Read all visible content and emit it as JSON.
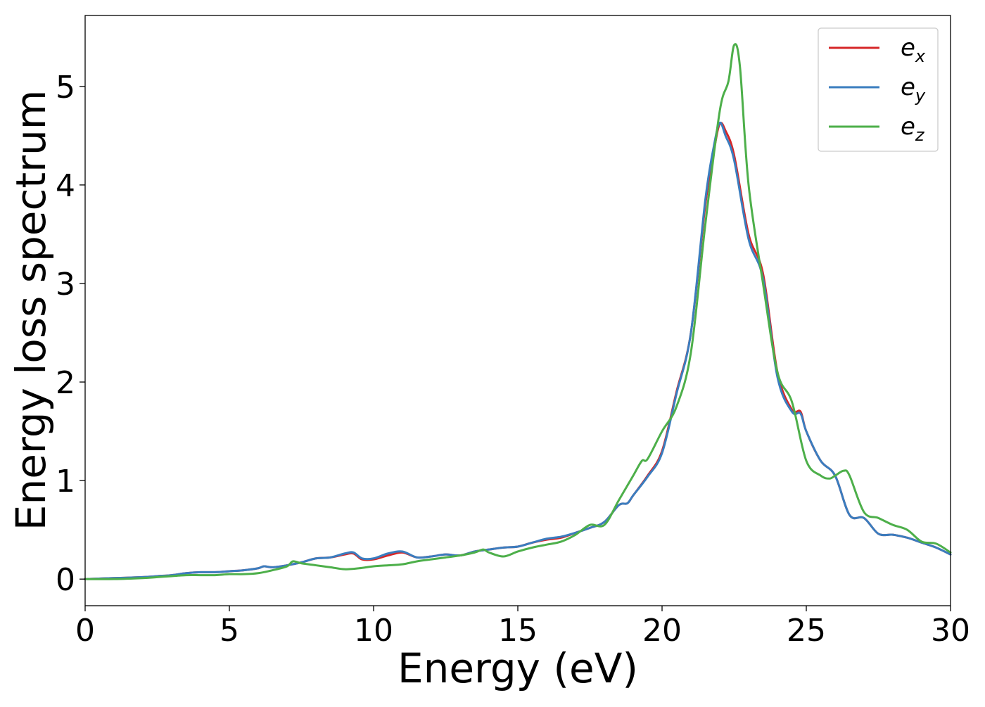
{
  "chart_data": {
    "type": "line",
    "title": "",
    "xlabel": "Energy (eV)",
    "ylabel": "Energy loss spectrum",
    "xlim": [
      0,
      30
    ],
    "ylim": [
      -0.27,
      5.72
    ],
    "xticks": [
      0,
      5,
      10,
      15,
      20,
      25,
      30
    ],
    "yticks": [
      0,
      1,
      2,
      3,
      4,
      5
    ],
    "grid": false,
    "legend_position": "top-right",
    "series": [
      {
        "name": "e_x",
        "base": "e",
        "sub": "x",
        "color": "#d62728",
        "x": [
          0,
          1,
          2,
          2.5,
          3,
          3.5,
          4,
          4.5,
          5,
          5.5,
          6,
          6.2,
          6.5,
          7,
          7.5,
          8,
          8.5,
          9,
          9.3,
          9.6,
          10,
          10.5,
          11,
          11.5,
          12,
          12.5,
          13,
          13.5,
          14,
          14.5,
          15,
          15.5,
          16,
          16.5,
          17,
          17.5,
          18,
          18.5,
          18.8,
          19,
          19.5,
          20,
          20.5,
          21,
          21.5,
          21.8,
          22.0,
          22.2,
          22.5,
          23,
          23.5,
          24,
          24.5,
          24.8,
          25,
          25.5,
          26,
          26.5,
          27,
          27.5,
          28,
          28.5,
          29,
          29.5,
          30
        ],
        "y": [
          0,
          0.01,
          0.02,
          0.03,
          0.04,
          0.06,
          0.07,
          0.07,
          0.08,
          0.09,
          0.11,
          0.13,
          0.12,
          0.14,
          0.17,
          0.21,
          0.22,
          0.25,
          0.26,
          0.2,
          0.2,
          0.24,
          0.27,
          0.22,
          0.23,
          0.25,
          0.24,
          0.28,
          0.3,
          0.32,
          0.33,
          0.37,
          0.4,
          0.42,
          0.47,
          0.52,
          0.58,
          0.75,
          0.77,
          0.85,
          1.05,
          1.3,
          1.9,
          2.5,
          3.8,
          4.35,
          4.62,
          4.55,
          4.3,
          3.5,
          3.1,
          2.1,
          1.72,
          1.7,
          1.5,
          1.2,
          1.05,
          0.65,
          0.62,
          0.46,
          0.45,
          0.42,
          0.37,
          0.32,
          0.25
        ]
      },
      {
        "name": "e_y",
        "base": "e",
        "sub": "y",
        "color": "#3a7dbf",
        "x": [
          0,
          1,
          2,
          2.5,
          3,
          3.5,
          4,
          4.5,
          5,
          5.5,
          6,
          6.2,
          6.5,
          7,
          7.5,
          8,
          8.5,
          9,
          9.3,
          9.6,
          10,
          10.5,
          11,
          11.5,
          12,
          12.5,
          13,
          13.5,
          14,
          14.5,
          15,
          15.5,
          16,
          16.5,
          17,
          17.5,
          18,
          18.5,
          18.8,
          19,
          19.5,
          20,
          20.5,
          21,
          21.5,
          21.8,
          22.0,
          22.2,
          22.5,
          23,
          23.5,
          24,
          24.5,
          24.8,
          25,
          25.5,
          26,
          26.5,
          27,
          27.5,
          28,
          28.5,
          29,
          29.5,
          30
        ],
        "y": [
          0,
          0.01,
          0.02,
          0.03,
          0.04,
          0.06,
          0.07,
          0.07,
          0.08,
          0.09,
          0.11,
          0.13,
          0.12,
          0.14,
          0.17,
          0.21,
          0.22,
          0.26,
          0.27,
          0.21,
          0.21,
          0.26,
          0.28,
          0.22,
          0.23,
          0.25,
          0.24,
          0.28,
          0.3,
          0.32,
          0.33,
          0.37,
          0.41,
          0.43,
          0.47,
          0.52,
          0.58,
          0.75,
          0.77,
          0.85,
          1.04,
          1.28,
          1.88,
          2.5,
          3.85,
          4.4,
          4.63,
          4.5,
          4.25,
          3.45,
          3.05,
          2.05,
          1.7,
          1.68,
          1.5,
          1.2,
          1.05,
          0.65,
          0.62,
          0.46,
          0.45,
          0.42,
          0.37,
          0.32,
          0.25
        ]
      },
      {
        "name": "e_z",
        "base": "e",
        "sub": "z",
        "color": "#4daf4a",
        "x": [
          0,
          1,
          2,
          2.5,
          3,
          3.5,
          4,
          4.5,
          5,
          5.5,
          6,
          6.5,
          7,
          7.2,
          7.5,
          8,
          8.5,
          9,
          9.5,
          10,
          10.5,
          11,
          11.5,
          12,
          12.5,
          13,
          13.5,
          13.8,
          14,
          14.5,
          15,
          15.5,
          16,
          16.5,
          17,
          17.5,
          18,
          18.5,
          19,
          19.3,
          19.5,
          20,
          20.5,
          21,
          21.5,
          22,
          22.3,
          22.5,
          22.7,
          23,
          23.5,
          24,
          24.5,
          25,
          25.5,
          25.8,
          26,
          26.3,
          26.5,
          27,
          27.5,
          28,
          28.5,
          29,
          29.5,
          30
        ],
        "y": [
          0,
          0,
          0.01,
          0.02,
          0.03,
          0.04,
          0.04,
          0.04,
          0.05,
          0.05,
          0.06,
          0.09,
          0.13,
          0.18,
          0.16,
          0.14,
          0.12,
          0.1,
          0.11,
          0.13,
          0.14,
          0.15,
          0.18,
          0.2,
          0.22,
          0.24,
          0.27,
          0.3,
          0.27,
          0.23,
          0.28,
          0.32,
          0.35,
          0.38,
          0.45,
          0.55,
          0.55,
          0.8,
          1.05,
          1.2,
          1.22,
          1.5,
          1.75,
          2.3,
          3.6,
          4.75,
          5.05,
          5.42,
          5.2,
          4.0,
          3.0,
          2.1,
          1.8,
          1.2,
          1.05,
          1.02,
          1.05,
          1.1,
          1.05,
          0.68,
          0.62,
          0.55,
          0.5,
          0.38,
          0.36,
          0.27
        ]
      }
    ]
  }
}
